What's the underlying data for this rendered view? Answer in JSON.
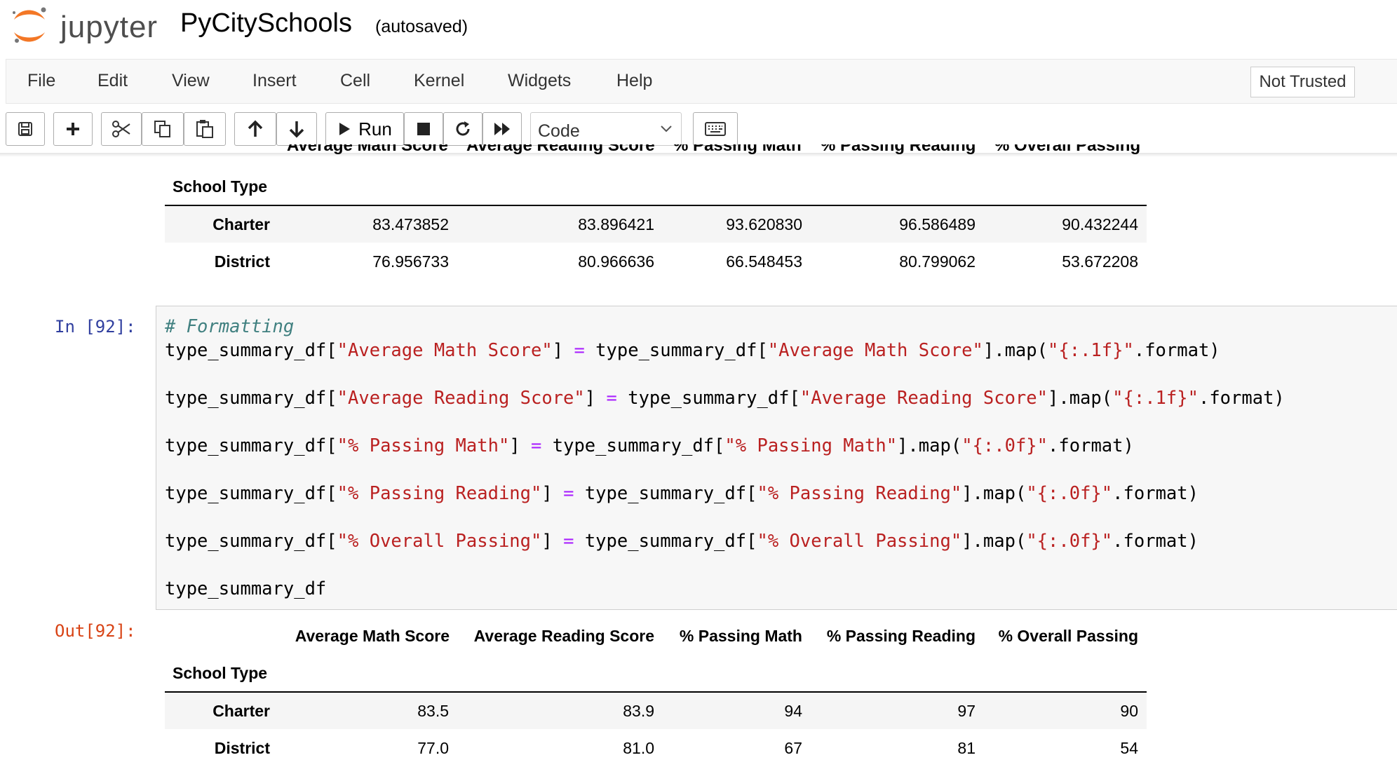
{
  "header": {
    "logo_text": "jupyter",
    "notebook_title": "PyCitySchools",
    "autosave_status": "(autosaved)"
  },
  "menubar": {
    "items": [
      "File",
      "Edit",
      "View",
      "Insert",
      "Cell",
      "Kernel",
      "Widgets",
      "Help"
    ],
    "trust_label": "Not Trusted"
  },
  "toolbar": {
    "run_label": "Run",
    "cell_type": "Code",
    "icons": [
      "save-icon",
      "plus-icon",
      "cut-icon",
      "copy-icon",
      "paste-icon",
      "arrow-up-icon",
      "arrow-down-icon",
      "play-icon",
      "stop-icon",
      "restart-icon",
      "fast-forward-icon",
      "keyboard-icon"
    ]
  },
  "output_top": {
    "clipped_headers": [
      "Average Math Score",
      "Average Reading Score",
      "% Passing Math",
      "% Passing Reading",
      "% Overall Passing"
    ],
    "index_name": "School Type",
    "rows": [
      {
        "index": "Charter",
        "values": [
          "83.473852",
          "83.896421",
          "93.620830",
          "96.586489",
          "90.432244"
        ]
      },
      {
        "index": "District",
        "values": [
          "76.956733",
          "80.966636",
          "66.548453",
          "80.799062",
          "53.672208"
        ]
      }
    ]
  },
  "cell": {
    "in_prompt": "In [92]:",
    "out_prompt": "Out[92]:",
    "code": {
      "comment": "# Formatting",
      "var": "type_summary_df",
      "lines": [
        {
          "col": "Average Math Score",
          "fmt": "{:.1f}"
        },
        {
          "col": "Average Reading Score",
          "fmt": "{:.1f}"
        },
        {
          "col": "% Passing Math",
          "fmt": "{:.0f}"
        },
        {
          "col": "% Passing Reading",
          "fmt": "{:.0f}"
        },
        {
          "col": "% Overall Passing",
          "fmt": "{:.0f}"
        }
      ],
      "last_line": "type_summary_df"
    }
  },
  "output_bottom": {
    "headers": [
      "Average Math Score",
      "Average Reading Score",
      "% Passing Math",
      "% Passing Reading",
      "% Overall Passing"
    ],
    "index_name": "School Type",
    "rows": [
      {
        "index": "Charter",
        "values": [
          "83.5",
          "83.9",
          "94",
          "97",
          "90"
        ]
      },
      {
        "index": "District",
        "values": [
          "77.0",
          "81.0",
          "67",
          "81",
          "54"
        ]
      }
    ]
  }
}
